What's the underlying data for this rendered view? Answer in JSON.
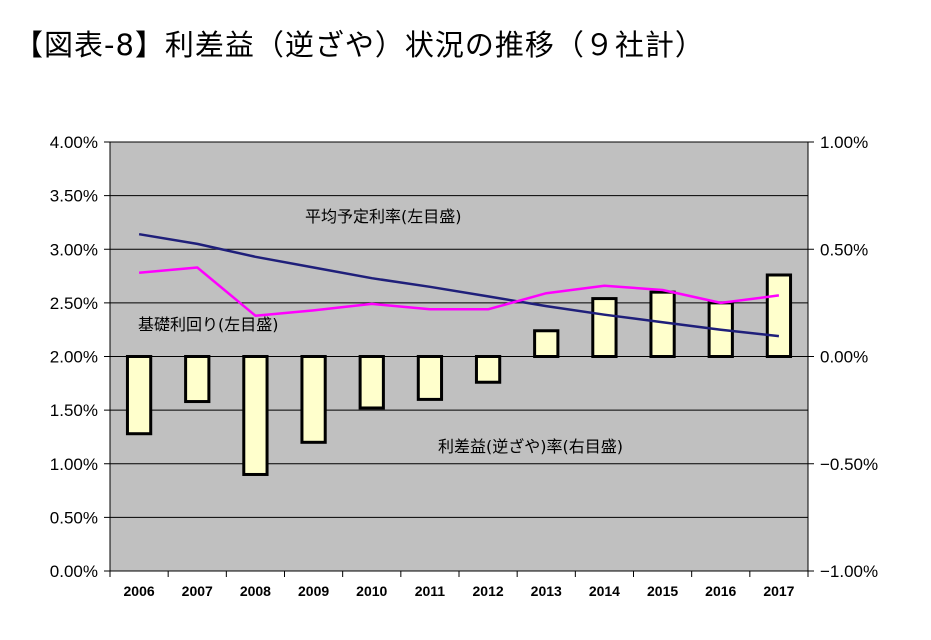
{
  "title": "【図表-8】利差益（逆ざや）状況の推移（９社計）",
  "chart_data": {
    "type": "bar+line",
    "categories": [
      "2006",
      "2007",
      "2008",
      "2009",
      "2010",
      "2011",
      "2012",
      "2013",
      "2014",
      "2015",
      "2016",
      "2017"
    ],
    "left_axis": {
      "ylim": [
        0,
        4
      ],
      "ticks": [
        0,
        0.5,
        1.0,
        1.5,
        2.0,
        2.5,
        3.0,
        3.5,
        4.0
      ],
      "tick_labels": [
        "0.00%",
        "0.50%",
        "1.00%",
        "1.50%",
        "2.00%",
        "2.50%",
        "3.00%",
        "3.50%",
        "4.00%"
      ]
    },
    "right_axis": {
      "ylim": [
        -1,
        1
      ],
      "ticks": [
        -1.0,
        -0.5,
        0.0,
        0.5,
        1.0
      ],
      "tick_labels": [
        "−1.00%",
        "−0.50%",
        "0.00%",
        "0.50%",
        "1.00%"
      ]
    },
    "grid": true,
    "series": [
      {
        "name": "平均予定利率(左目盛)",
        "type": "line",
        "axis": "left",
        "color": "#1f1f7a",
        "values": [
          3.14,
          3.05,
          2.93,
          2.83,
          2.73,
          2.65,
          2.56,
          2.47,
          2.39,
          2.32,
          2.25,
          2.19
        ]
      },
      {
        "name": "基礎利回り(左目盛)",
        "type": "line",
        "axis": "left",
        "color": "#ff00ff",
        "values": [
          2.78,
          2.83,
          2.38,
          2.43,
          2.49,
          2.44,
          2.44,
          2.59,
          2.66,
          2.62,
          2.5,
          2.57
        ]
      },
      {
        "name": "利差益(逆ざや)率(右目盛)",
        "type": "bar",
        "axis": "right",
        "color": "#ffffcc",
        "values": [
          -0.36,
          -0.21,
          -0.55,
          -0.4,
          -0.24,
          -0.2,
          -0.12,
          0.12,
          0.27,
          0.3,
          0.25,
          0.38
        ]
      }
    ]
  }
}
